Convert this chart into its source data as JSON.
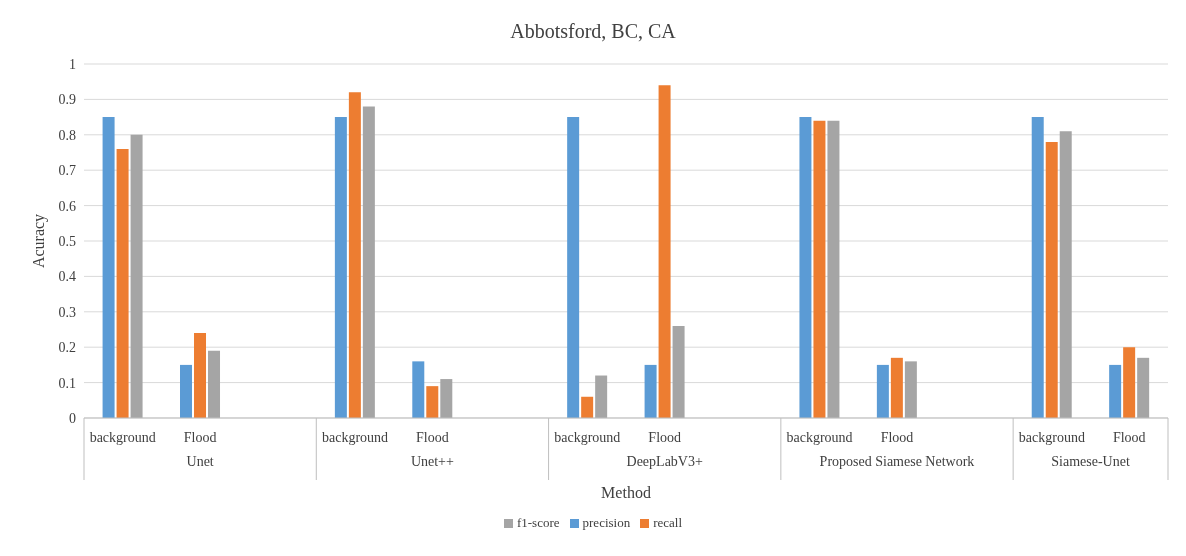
{
  "chart_data": {
    "type": "bar",
    "title": "Abbotsford, BC, CA",
    "xlabel": "Method",
    "ylabel": "Acuracy",
    "categories": [
      "background",
      "Flood",
      null,
      "background",
      "Flood",
      null,
      "background",
      "Flood",
      null,
      "background",
      "Flood",
      null,
      "background",
      "Flood"
    ],
    "annotations": [
      "Unet",
      "Unet++",
      "DeepLabV3+",
      "Proposed Siamese Network",
      "Siamese-Unet"
    ],
    "series": [
      {
        "name": "precision",
        "color": "#5b9bd5",
        "values": [
          0.85,
          0.15,
          null,
          0.85,
          0.16,
          null,
          0.85,
          0.15,
          null,
          0.85,
          0.15,
          null,
          0.85,
          0.15
        ]
      },
      {
        "name": "recall",
        "color": "#ed7d31",
        "values": [
          0.76,
          0.24,
          null,
          0.92,
          0.09,
          null,
          0.06,
          0.94,
          null,
          0.84,
          0.17,
          null,
          0.78,
          0.2
        ]
      },
      {
        "name": "f1-score",
        "color": "#a5a5a5",
        "values": [
          0.8,
          0.19,
          null,
          0.88,
          0.11,
          null,
          0.12,
          0.26,
          null,
          0.84,
          0.16,
          null,
          0.81,
          0.17
        ]
      }
    ],
    "ylim": [
      0,
      1
    ],
    "yticks": [
      0,
      0.1,
      0.2,
      0.3,
      0.4,
      0.5,
      0.6,
      0.7,
      0.8,
      0.9,
      1
    ],
    "grid": "y",
    "legend": "bottom"
  }
}
